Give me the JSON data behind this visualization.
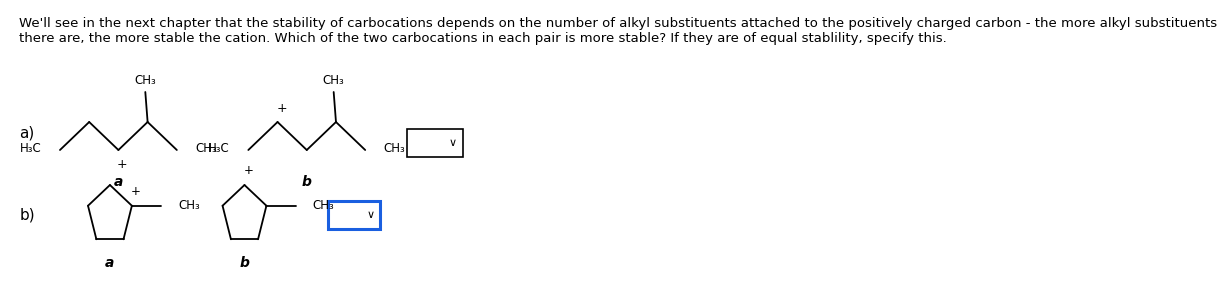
{
  "background_color": "#ffffff",
  "text_color": "#000000",
  "header_text": "We'll see in the next chapter that the stability of carbocations depends on the number of alkyl substituents attached to the positively charged carbon - the more alkyl substituents\nthere are, the more stable the cation. Which of the two carbocations in each pair is more stable? If they are of equal stablility, specify this.",
  "header_fontsize": 9.5,
  "label_fontsize": 11,
  "dropdown_a_color": "#000000",
  "dropdown_b_color": "#1a5fe0"
}
